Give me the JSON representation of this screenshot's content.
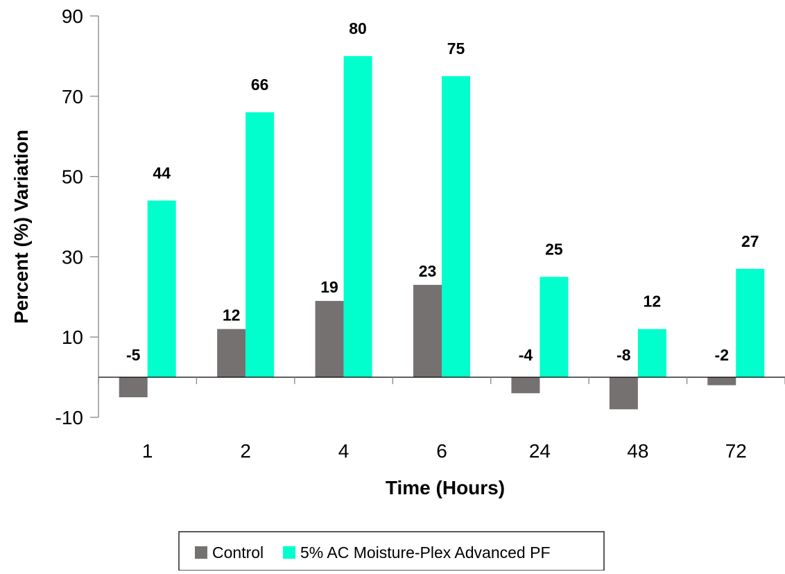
{
  "chart_data": {
    "type": "bar",
    "categories": [
      "1",
      "2",
      "4",
      "6",
      "24",
      "48",
      "72"
    ],
    "series": [
      {
        "name": "Control",
        "values": [
          -5,
          12,
          19,
          23,
          -4,
          -8,
          -2
        ],
        "color": "#767171"
      },
      {
        "name": "5% AC Moisture-Plex Advanced PF",
        "values": [
          44,
          66,
          80,
          75,
          25,
          12,
          27
        ],
        "color": "#00FFCC"
      }
    ],
    "data_labels": [
      [
        "-5",
        "12",
        "19",
        "23",
        "-4",
        "-8",
        "-2"
      ],
      [
        "44",
        "66",
        "80",
        "75",
        "25",
        "12",
        "27"
      ]
    ],
    "title": "",
    "xlabel": "Time (Hours)",
    "ylabel": "Percent (%) Variation",
    "ylim": [
      -10,
      90
    ],
    "yticks": [
      -10,
      10,
      30,
      50,
      70,
      90
    ],
    "ytick_labels": [
      "-10",
      "10",
      "30",
      "50",
      "70",
      "90"
    ],
    "grid": false,
    "legend": "bottom-center"
  }
}
